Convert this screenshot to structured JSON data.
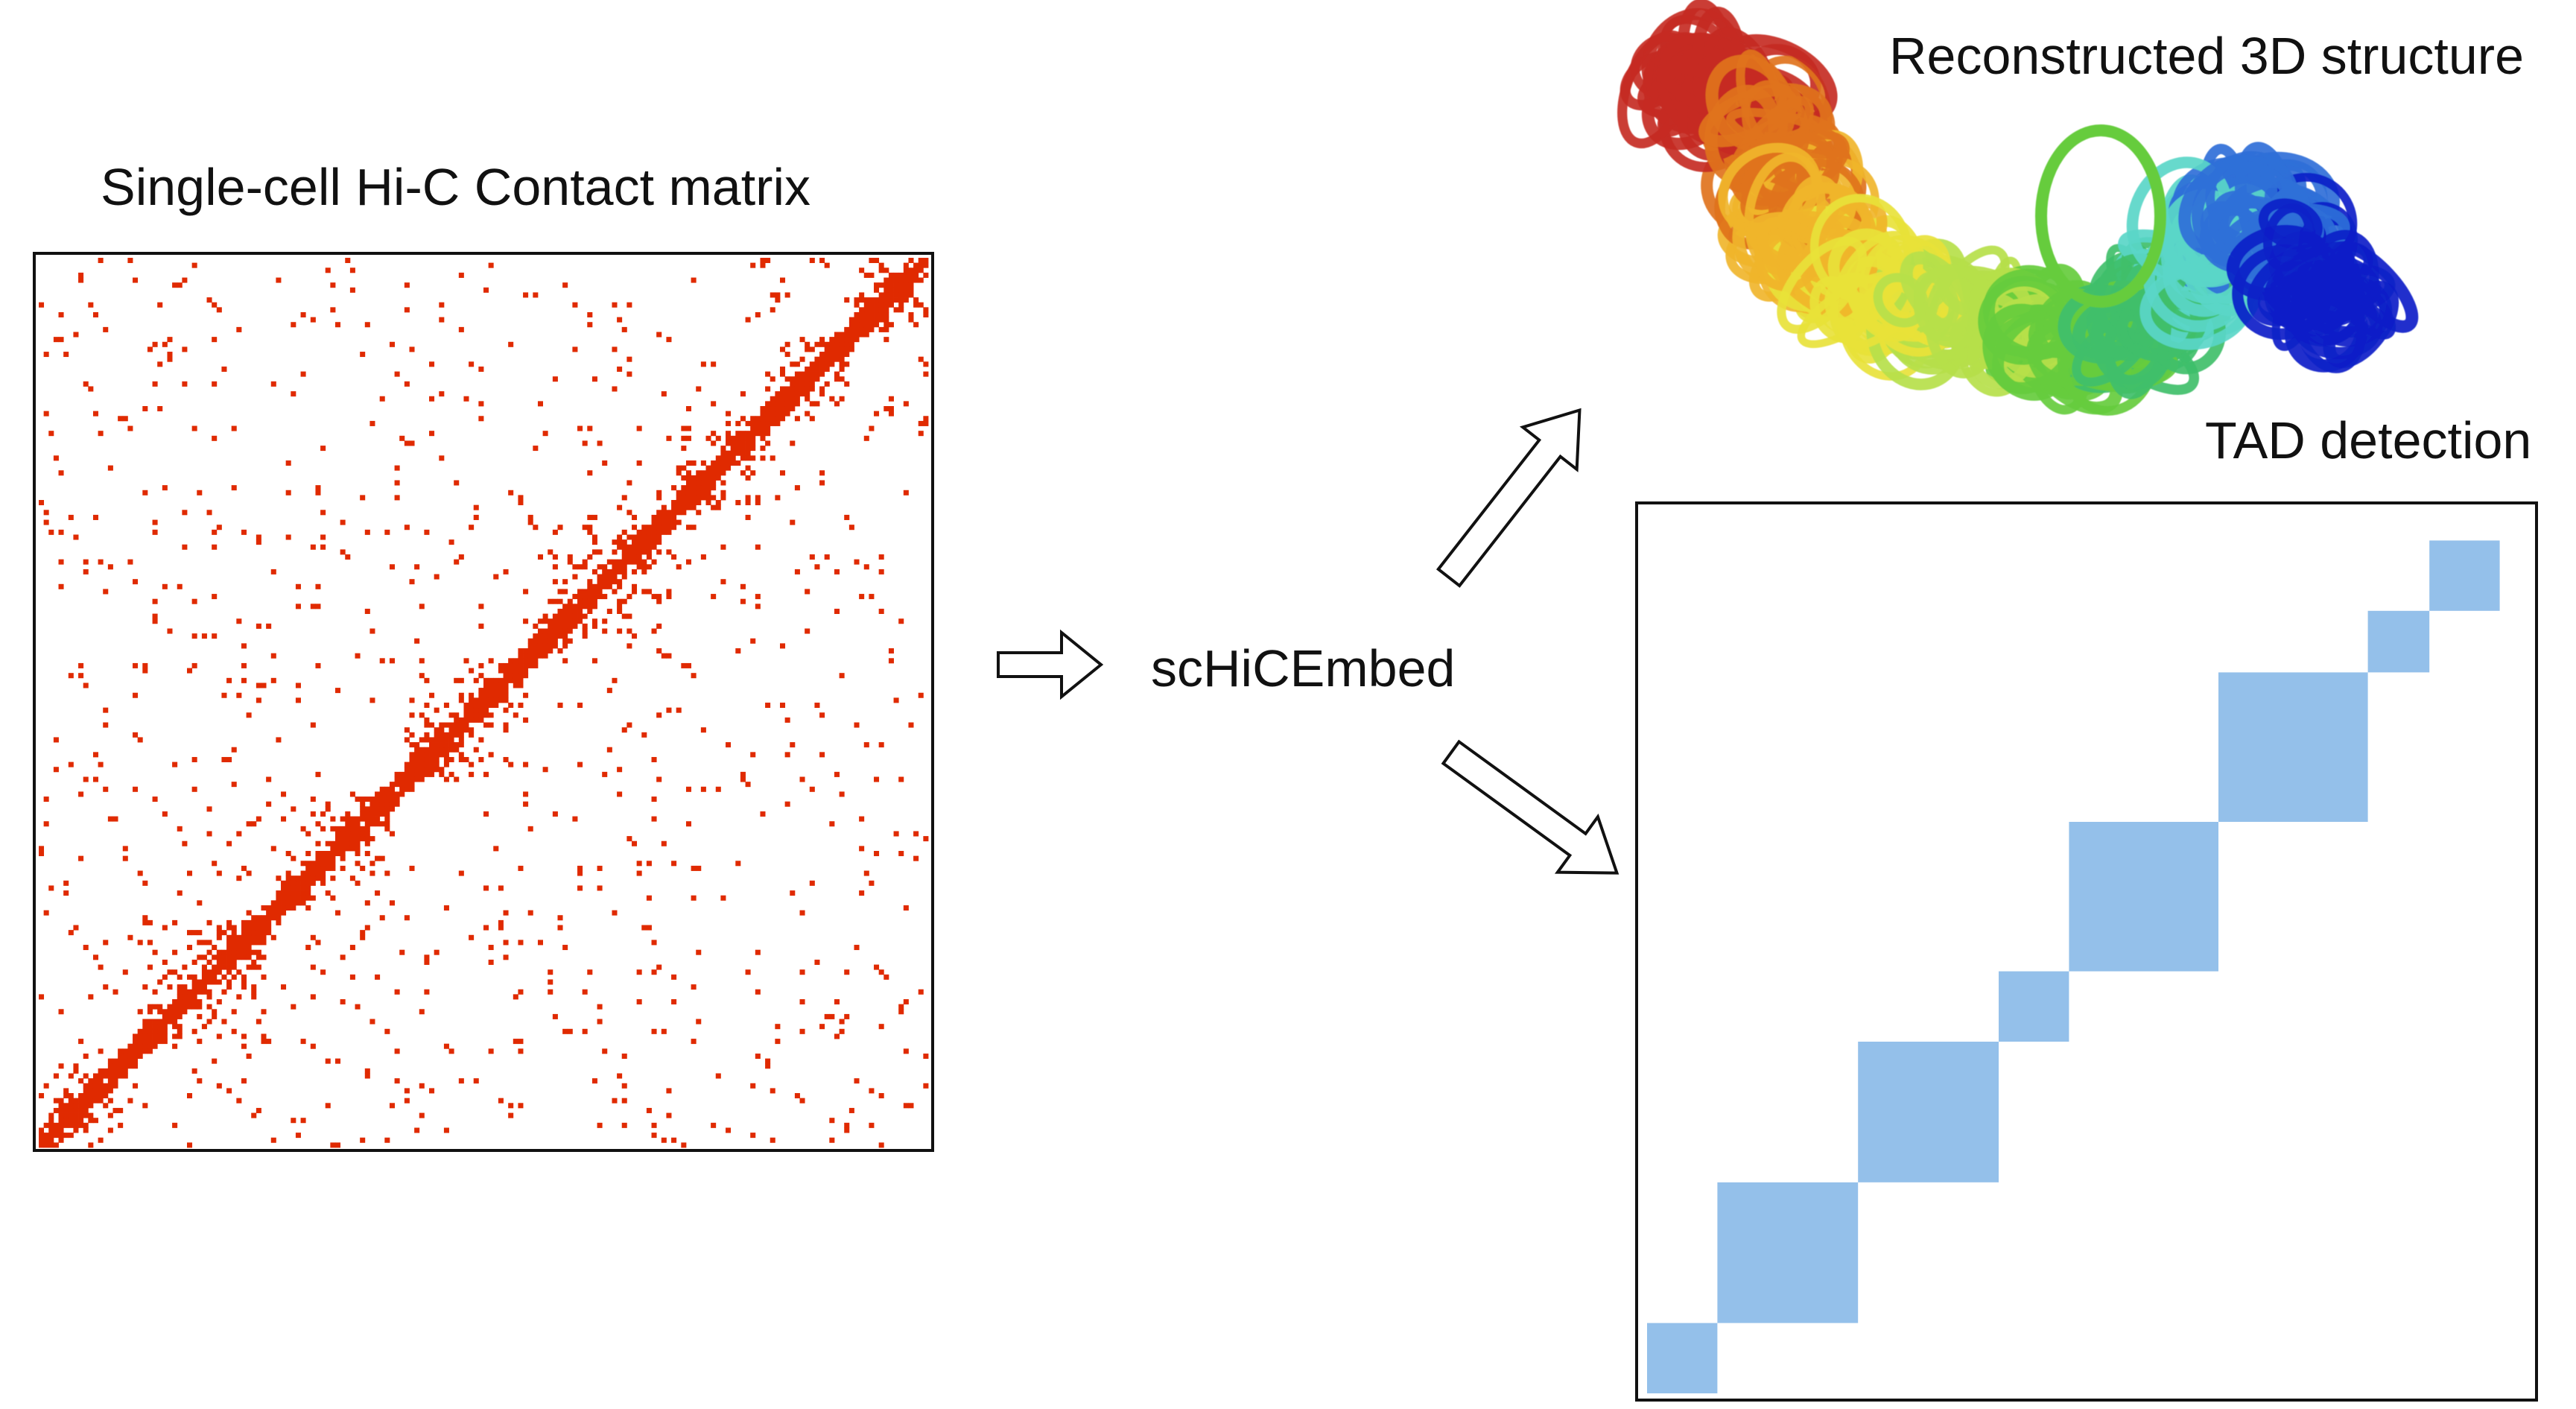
{
  "labels": {
    "contact_matrix_title": "Single-cell Hi-C Contact matrix",
    "method_name": "scHiCEmbed",
    "structure_title": "Reconstructed 3D structure",
    "tad_title": "TAD detection"
  },
  "colors": {
    "contact_color": "#e02a00",
    "tad_color": "#94c0ea",
    "border_color": "#111111",
    "arrow_fill": "#ffffff",
    "structure_gradient": [
      "#c62b22",
      "#e0731c",
      "#f0b52a",
      "#e8e23a",
      "#b6e04a",
      "#66cc3e",
      "#3fbf6a",
      "#5ad6c8",
      "#2f6fd8",
      "#0a1fc8"
    ]
  },
  "tad_blocks": [
    {
      "start": 0.0,
      "end": 0.08
    },
    {
      "start": 0.08,
      "end": 0.24
    },
    {
      "start": 0.24,
      "end": 0.4
    },
    {
      "start": 0.4,
      "end": 0.48
    },
    {
      "start": 0.48,
      "end": 0.65
    },
    {
      "start": 0.65,
      "end": 0.82
    },
    {
      "start": 0.82,
      "end": 0.89
    },
    {
      "start": 0.89,
      "end": 0.97
    }
  ],
  "icons": {
    "arrow_to_method": "hollow-right-arrow-icon",
    "arrow_to_structure": "hollow-up-right-arrow-icon",
    "arrow_to_tad": "hollow-down-right-arrow-icon"
  }
}
